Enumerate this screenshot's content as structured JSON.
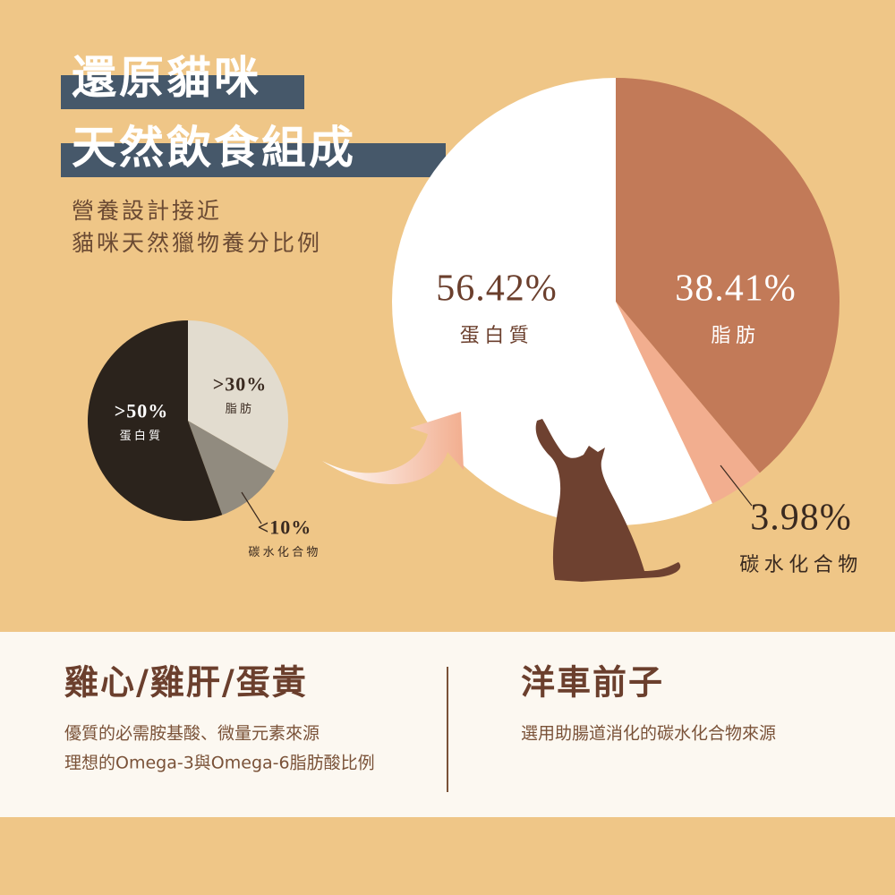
{
  "title": [
    "還原貓咪",
    "天然飲食組成"
  ],
  "subtitle": [
    "營養設計接近",
    "貓咪天然獵物養分比例"
  ],
  "chart_data": [
    {
      "type": "pie",
      "categories": [
        "脂肪",
        "碳水化合物",
        "蛋白質"
      ],
      "values": [
        30,
        10,
        50
      ],
      "value_labels": [
        ">30%",
        "<10%",
        ">50%"
      ],
      "colors": [
        "#e2dccf",
        "#918b7f",
        "#2b231c"
      ]
    },
    {
      "type": "pie",
      "categories": [
        "脂肪",
        "碳水化合物",
        "蛋白質"
      ],
      "values": [
        38.41,
        3.98,
        56.42
      ],
      "value_labels": [
        "38.41%",
        "3.98%",
        "56.42%"
      ],
      "colors": [
        "#c27a58",
        "#f2ae8f",
        "#ffffff"
      ]
    }
  ],
  "features": [
    {
      "title": "雞心/雞肝/蛋黃",
      "lines": [
        "優質的必需胺基酸、微量元素來源",
        "理想的Omega-3與Omega-6脂肪酸比例"
      ]
    },
    {
      "title": "洋車前子",
      "lines": [
        "選用助腸道消化的碳水化合物來源"
      ]
    }
  ]
}
